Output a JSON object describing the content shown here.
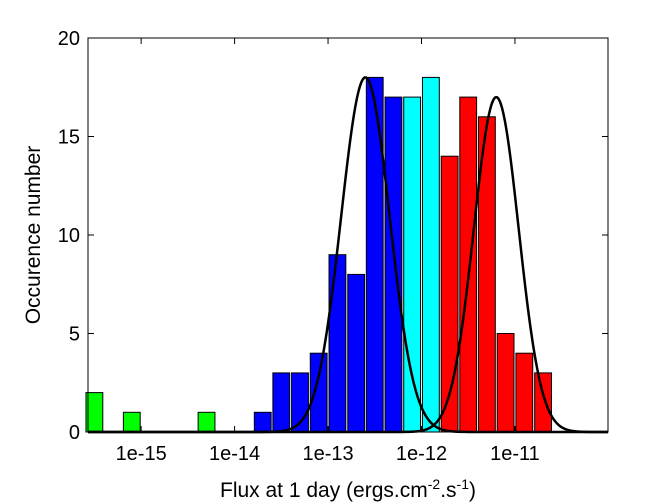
{
  "chart_data": {
    "type": "bar",
    "xlabel": "Flux at 1 day (ergs.cm^-2.s^-1)",
    "xlabel_parts": {
      "base": "Flux at 1 day (ergs.cm",
      "exp1": "-2",
      "mid": ".s",
      "exp2": "-1",
      "end": ")"
    },
    "ylabel": "Occurence number",
    "ylim": [
      0,
      20
    ],
    "yticks": [
      0,
      5,
      10,
      15,
      20
    ],
    "xscale": "log",
    "xlim": [
      2.7e-16,
      9.9e-11
    ],
    "xticks": [
      {
        "value": 1e-15,
        "label": "1e-15"
      },
      {
        "value": 1e-14,
        "label": "1e-14"
      },
      {
        "value": 1e-13,
        "label": "1e-13"
      },
      {
        "value": 1e-12,
        "label": "1e-12"
      },
      {
        "value": 1e-11,
        "label": "1e-11"
      }
    ],
    "grid": false,
    "legend": "none",
    "bin_width_log10": 0.2,
    "colors": {
      "green": "#00ff00",
      "blue": "#0000ff",
      "cyan": "#00ffff",
      "red": "#ff0000",
      "curve": "#000000"
    },
    "bars": [
      {
        "x": 3.16e-16,
        "value": 2,
        "color": "green"
      },
      {
        "x": 7.94e-16,
        "value": 1,
        "color": "green"
      },
      {
        "x": 5.01e-15,
        "value": 1,
        "color": "green"
      },
      {
        "x": 1.26e-14,
        "value": 0,
        "color": "blue"
      },
      {
        "x": 2e-14,
        "value": 1,
        "color": "blue"
      },
      {
        "x": 3.16e-14,
        "value": 3,
        "color": "blue"
      },
      {
        "x": 5.01e-14,
        "value": 3,
        "color": "blue"
      },
      {
        "x": 7.94e-14,
        "value": 4,
        "color": "blue"
      },
      {
        "x": 1.26e-13,
        "value": 9,
        "color": "blue"
      },
      {
        "x": 2e-13,
        "value": 8,
        "color": "blue"
      },
      {
        "x": 3.16e-13,
        "value": 18,
        "color": "blue"
      },
      {
        "x": 5.01e-13,
        "value": 17,
        "color": "blue"
      },
      {
        "x": 7.94e-13,
        "value": 17,
        "color": "cyan"
      },
      {
        "x": 1.26e-12,
        "value": 18,
        "color": "cyan"
      },
      {
        "x": 2e-12,
        "value": 14,
        "color": "red"
      },
      {
        "x": 3.16e-12,
        "value": 17,
        "color": "red"
      },
      {
        "x": 5.01e-12,
        "value": 16,
        "color": "red"
      },
      {
        "x": 7.94e-12,
        "value": 5,
        "color": "red"
      },
      {
        "x": 1.26e-11,
        "value": 4,
        "color": "red"
      },
      {
        "x": 2e-11,
        "value": 3,
        "color": "red"
      }
    ],
    "curves": [
      {
        "type": "gaussian",
        "peak": 18,
        "center": 2.51e-13,
        "sigma_log10": 0.26
      },
      {
        "type": "gaussian",
        "peak": 17,
        "center": 6.31e-12,
        "sigma_log10": 0.24
      }
    ]
  }
}
